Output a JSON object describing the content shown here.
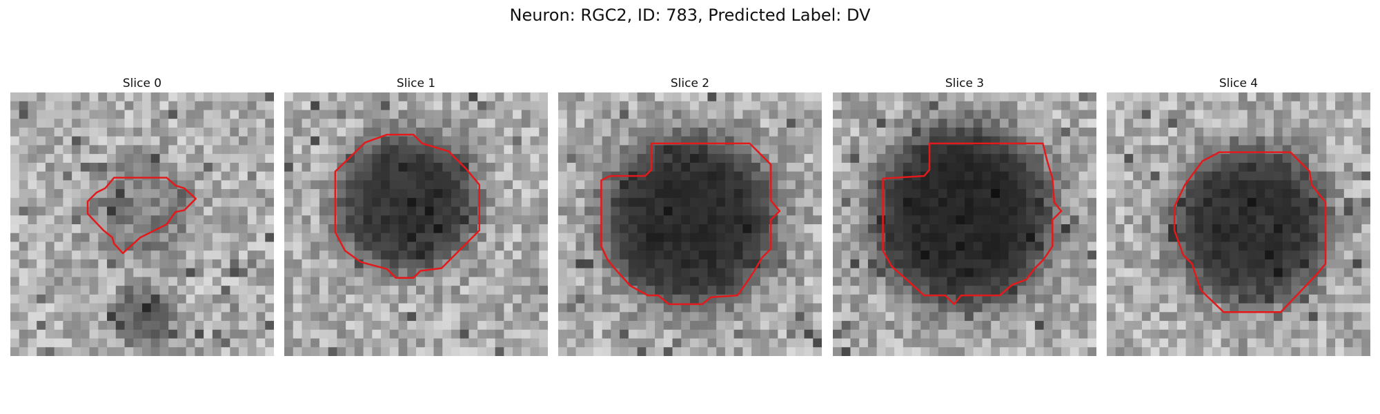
{
  "title": "Neuron: RGC2, ID: 783, Predicted Label: DV",
  "panels": [
    {
      "title": "Slice 0"
    },
    {
      "title": "Slice 1"
    },
    {
      "title": "Slice 2"
    },
    {
      "title": "Slice 3"
    },
    {
      "title": "Slice 4"
    }
  ]
}
